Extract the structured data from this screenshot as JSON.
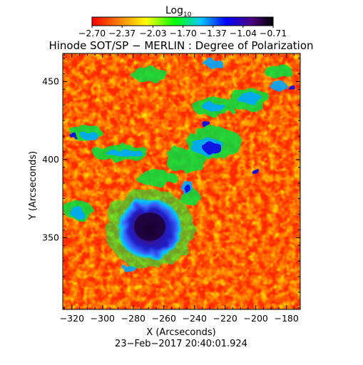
{
  "figure": {
    "colorbar": {
      "label_main": "Log",
      "label_sub": "10",
      "ticks": [
        "−2.70",
        "−2.37",
        "−2.03",
        "−1.70",
        "−1.37",
        "−1.04",
        "−0.71"
      ]
    },
    "title": "Hinode SOT/SP − MERLIN : Degree of Polarization",
    "xlabel": "X (Arcseconds)",
    "ylabel": "Y (Arcseconds)",
    "timestamp": "23−Feb−2017 20:40:01.924",
    "x_ticks": [
      "−320",
      "−300",
      "−280",
      "−260",
      "−240",
      "−220",
      "−200",
      "−180"
    ],
    "y_ticks": [
      "450",
      "400",
      "350"
    ]
  },
  "chart_data": {
    "type": "heatmap",
    "title": "Hinode SOT/SP − MERLIN : Degree of Polarization",
    "xlabel": "X (Arcseconds)",
    "ylabel": "Y (Arcseconds)",
    "xlim": [
      -326,
      -171
    ],
    "ylim": [
      304,
      468
    ],
    "x_ticks": [
      -320,
      -300,
      -280,
      -260,
      -240,
      -220,
      -200,
      -180
    ],
    "y_ticks": [
      350,
      400,
      450
    ],
    "colorbar": {
      "scale": "log10",
      "range": [
        -2.7,
        -0.71
      ],
      "ticks": [
        -2.7,
        -2.37,
        -2.03,
        -1.7,
        -1.37,
        -1.04,
        -0.71
      ],
      "colormap": [
        "#ff0000",
        "#ff7800",
        "#ffff00",
        "#00ff00",
        "#00c8ff",
        "#0000ff",
        "#4b0082",
        "#000000"
      ]
    },
    "features": {
      "background_level": "low (red/orange)",
      "sunspot_center": [
        -263,
        356
      ],
      "sunspot_level": "high (dark purple/black core, blue rim)",
      "plage_regions": "patchy green/blue network around (-270..-200, 380..460)"
    }
  }
}
